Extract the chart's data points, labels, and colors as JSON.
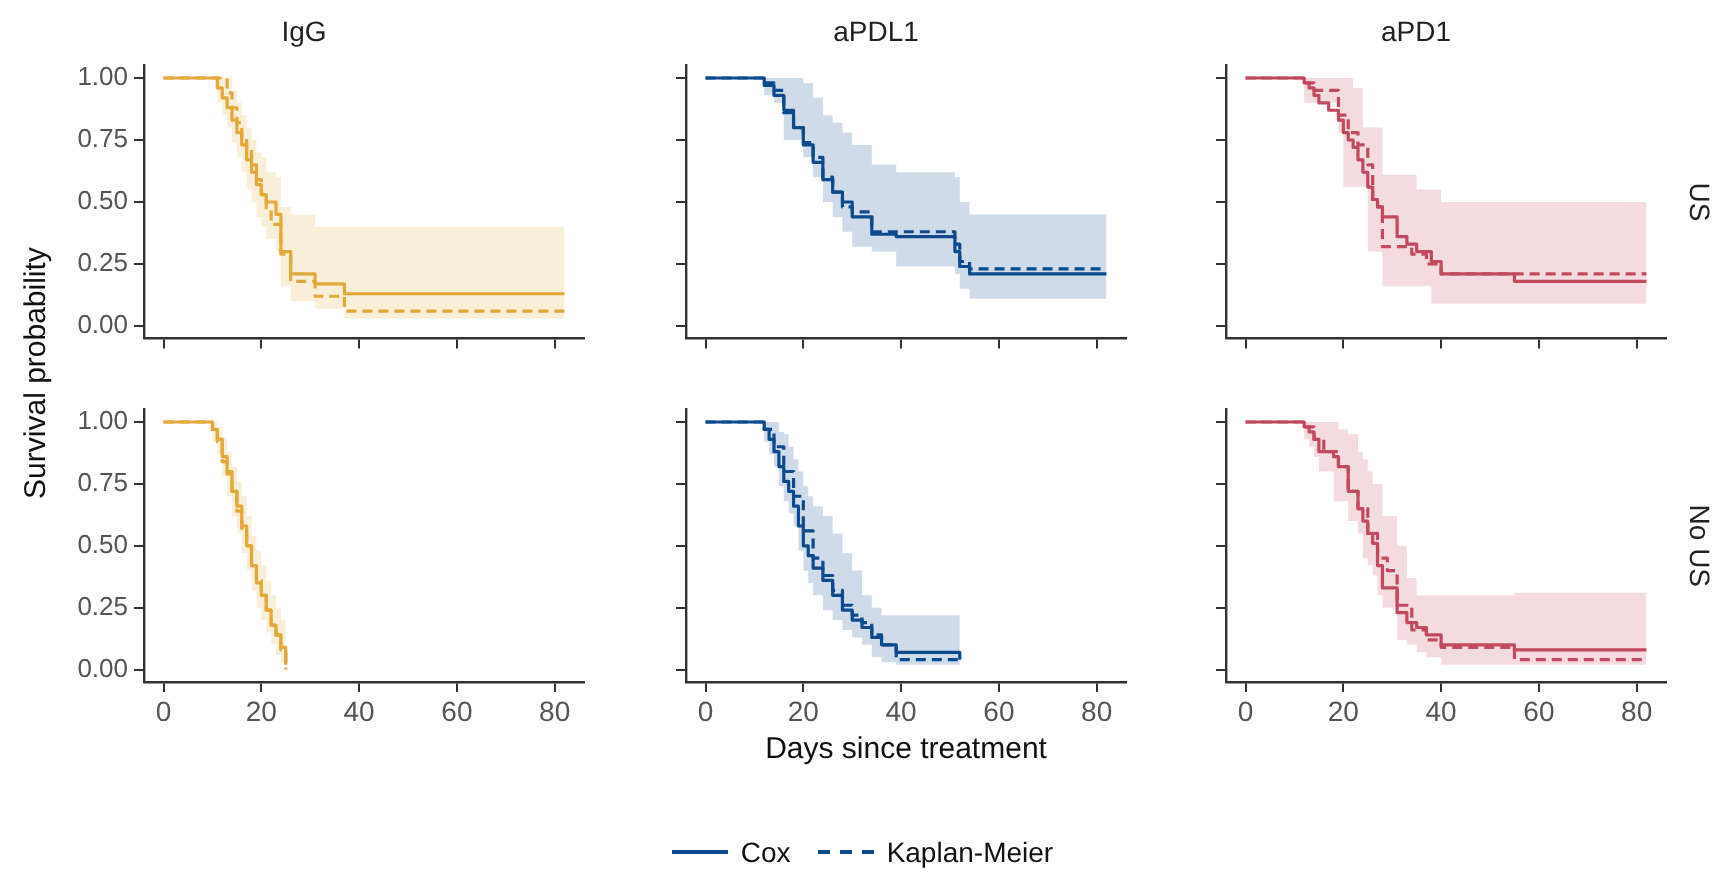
{
  "chart_data": [
    {
      "type": "step",
      "title": "IgG",
      "ylabel": "Survival probability",
      "xlim": [
        -4,
        86
      ],
      "xticks": [
        0,
        20,
        40,
        60,
        80
      ],
      "ylim": [
        -0.05,
        1.05
      ],
      "yticks": [
        {
          "value": 0,
          "label": "0.00"
        },
        {
          "value": 0.25,
          "label": "0.25"
        },
        {
          "value": 0.5,
          "label": "0.50"
        },
        {
          "value": 0.75,
          "label": "0.75"
        },
        {
          "value": 1,
          "label": "1.00"
        }
      ],
      "tick_labels": "y",
      "series": [
        {
          "color": "#e3a83a",
          "line_style": "solid",
          "x": [
            0,
            11,
            12,
            13,
            14,
            15,
            16,
            17,
            18,
            19,
            20,
            21,
            23,
            24,
            26,
            31,
            37,
            82
          ],
          "values": [
            1,
            0.96,
            0.92,
            0.88,
            0.83,
            0.78,
            0.73,
            0.67,
            0.62,
            0.57,
            0.53,
            0.5,
            0.45,
            0.3,
            0.21,
            0.17,
            0.13,
            0.13
          ],
          "lower": [
            1,
            0.9,
            0.85,
            0.8,
            0.74,
            0.68,
            0.62,
            0.55,
            0.5,
            0.44,
            0.4,
            0.35,
            0.3,
            0.16,
            0.1,
            0.07,
            0.03,
            0.03
          ],
          "upper": [
            1,
            1,
            1,
            1,
            0.95,
            0.9,
            0.85,
            0.8,
            0.75,
            0.7,
            0.68,
            0.62,
            0.6,
            0.48,
            0.45,
            0.4,
            0.4,
            0.4
          ]
        },
        {
          "color": "#e3a83a",
          "line_style": "dashed",
          "x": [
            0,
            13,
            14,
            15,
            16,
            17,
            18,
            19,
            20,
            21,
            22,
            24,
            26,
            31,
            37,
            82
          ],
          "values": [
            1,
            0.94,
            0.88,
            0.82,
            0.76,
            0.71,
            0.65,
            0.59,
            0.53,
            0.47,
            0.41,
            0.29,
            0.18,
            0.12,
            0.06,
            0.06
          ]
        }
      ]
    },
    {
      "type": "step",
      "title": "aPDL1",
      "xlim": [
        -4,
        86
      ],
      "xticks": [
        0,
        20,
        40,
        60,
        80
      ],
      "ylim": [
        -0.05,
        1.05
      ],
      "yticks": [
        0,
        0.25,
        0.5,
        0.75,
        1
      ],
      "tick_labels": false,
      "series": [
        {
          "color": "#0d4a8e",
          "line_style": "solid",
          "x": [
            0,
            12,
            14,
            16,
            18,
            20,
            22,
            24,
            26,
            28,
            30,
            34,
            39,
            51,
            52,
            54,
            82
          ],
          "values": [
            1,
            0.97,
            0.93,
            0.87,
            0.8,
            0.73,
            0.66,
            0.59,
            0.54,
            0.5,
            0.44,
            0.37,
            0.36,
            0.3,
            0.24,
            0.21,
            0.21
          ],
          "lower": [
            1,
            0.93,
            0.9,
            0.75,
            0.75,
            0.68,
            0.6,
            0.5,
            0.44,
            0.38,
            0.32,
            0.3,
            0.24,
            0.21,
            0.15,
            0.11,
            0.11
          ],
          "upper": [
            1,
            1,
            1,
            1,
            1,
            0.98,
            0.92,
            0.85,
            0.82,
            0.78,
            0.73,
            0.65,
            0.62,
            0.6,
            0.5,
            0.45,
            0.45
          ]
        },
        {
          "color": "#0d4a8e",
          "line_style": "dashed",
          "x": [
            0,
            12,
            14,
            16,
            18,
            20,
            22,
            24,
            26,
            28,
            30,
            34,
            39,
            51,
            52,
            54,
            82
          ],
          "values": [
            1,
            0.98,
            0.95,
            0.86,
            0.8,
            0.74,
            0.68,
            0.6,
            0.54,
            0.48,
            0.46,
            0.38,
            0.38,
            0.33,
            0.26,
            0.23,
            0.23
          ]
        }
      ]
    },
    {
      "type": "step",
      "title": "aPD1",
      "y2label": "US",
      "xlim": [
        -4,
        86
      ],
      "xticks": [
        0,
        20,
        40,
        60,
        80
      ],
      "ylim": [
        -0.05,
        1.05
      ],
      "yticks": [
        0,
        0.25,
        0.5,
        0.75,
        1
      ],
      "tick_labels": false,
      "series": [
        {
          "color": "#c24a5e",
          "line_style": "solid",
          "x": [
            0,
            12,
            13,
            14,
            15,
            17,
            19,
            20,
            21,
            22,
            23,
            24,
            25,
            26,
            27,
            28,
            31,
            33,
            35,
            38,
            40,
            55,
            82
          ],
          "values": [
            1,
            0.98,
            0.96,
            0.93,
            0.9,
            0.87,
            0.83,
            0.78,
            0.75,
            0.72,
            0.67,
            0.62,
            0.56,
            0.51,
            0.48,
            0.44,
            0.36,
            0.33,
            0.3,
            0.26,
            0.21,
            0.18,
            0.18
          ],
          "lower": [
            1,
            0.9,
            0.9,
            0.9,
            0.9,
            0.9,
            0.78,
            0.56,
            0.56,
            0.56,
            0.56,
            0.56,
            0.3,
            0.3,
            0.3,
            0.16,
            0.16,
            0.16,
            0.16,
            0.09,
            0.09,
            0.09,
            0.09
          ],
          "upper": [
            1,
            1,
            1,
            1,
            1,
            1,
            1,
            1,
            1,
            0.96,
            0.96,
            0.8,
            0.8,
            0.8,
            0.8,
            0.61,
            0.61,
            0.61,
            0.55,
            0.55,
            0.5,
            0.5,
            0.5
          ]
        },
        {
          "color": "#c24a5e",
          "line_style": "dashed",
          "x": [
            0,
            12,
            14,
            17,
            19,
            21,
            23,
            25,
            26,
            27,
            28,
            31,
            34,
            37,
            40,
            82
          ],
          "values": [
            1,
            0.98,
            0.95,
            0.95,
            0.85,
            0.78,
            0.73,
            0.65,
            0.5,
            0.48,
            0.32,
            0.32,
            0.29,
            0.25,
            0.21,
            0.21
          ]
        }
      ]
    },
    {
      "type": "step",
      "xlim": [
        -4,
        86
      ],
      "xticks": [
        0,
        20,
        40,
        60,
        80
      ],
      "ylim": [
        -0.05,
        1.05
      ],
      "yticks": [
        {
          "value": 0,
          "label": "0.00"
        },
        {
          "value": 0.25,
          "label": "0.25"
        },
        {
          "value": 0.5,
          "label": "0.50"
        },
        {
          "value": 0.75,
          "label": "0.75"
        },
        {
          "value": 1,
          "label": "1.00"
        }
      ],
      "series": [
        {
          "color": "#e3a83a",
          "line_style": "solid",
          "x": [
            0,
            10,
            11,
            12,
            13,
            14,
            15,
            16,
            17,
            18,
            19,
            20,
            21,
            22,
            23,
            24,
            25
          ],
          "values": [
            1,
            0.97,
            0.93,
            0.86,
            0.79,
            0.72,
            0.66,
            0.58,
            0.5,
            0.42,
            0.35,
            0.3,
            0.24,
            0.18,
            0.14,
            0.09,
            0.02
          ],
          "lower": [
            1,
            0.92,
            0.87,
            0.78,
            0.7,
            0.62,
            0.55,
            0.47,
            0.4,
            0.32,
            0.25,
            0.2,
            0.15,
            0.1,
            0.06,
            0.03,
            0.01
          ],
          "upper": [
            1,
            1,
            0.98,
            0.94,
            0.88,
            0.82,
            0.76,
            0.7,
            0.62,
            0.54,
            0.48,
            0.42,
            0.36,
            0.3,
            0.25,
            0.2,
            0.1
          ]
        },
        {
          "color": "#e3a83a",
          "line_style": "dashed",
          "x": [
            0,
            10,
            11,
            12,
            13,
            14,
            15,
            16,
            17,
            18,
            19,
            20,
            21,
            22,
            23,
            24,
            25
          ],
          "values": [
            1,
            0.96,
            0.92,
            0.84,
            0.8,
            0.72,
            0.64,
            0.56,
            0.5,
            0.42,
            0.36,
            0.3,
            0.24,
            0.18,
            0.14,
            0.08,
            0
          ]
        }
      ]
    },
    {
      "type": "step",
      "xlabel": "Days since treatment",
      "legend": "bottom",
      "xlim": [
        -4,
        86
      ],
      "xticks": [
        0,
        20,
        40,
        60,
        80
      ],
      "ylim": [
        -0.05,
        1.05
      ],
      "yticks": [
        0,
        0.25,
        0.5,
        0.75,
        1
      ],
      "tick_labels": "x",
      "series": [
        {
          "name": "Cox",
          "color": "#0d4a8e",
          "line_style": "solid",
          "x": [
            0,
            12,
            13,
            14,
            15,
            16,
            17,
            18,
            19,
            20,
            21,
            22,
            24,
            26,
            28,
            30,
            32,
            34,
            36,
            39,
            52
          ],
          "values": [
            1,
            0.97,
            0.93,
            0.88,
            0.82,
            0.76,
            0.72,
            0.66,
            0.58,
            0.5,
            0.46,
            0.41,
            0.36,
            0.3,
            0.24,
            0.2,
            0.17,
            0.13,
            0.1,
            0.07,
            0.04
          ],
          "lower": [
            1,
            0.92,
            0.87,
            0.82,
            0.74,
            0.68,
            0.63,
            0.58,
            0.48,
            0.4,
            0.35,
            0.3,
            0.24,
            0.2,
            0.16,
            0.13,
            0.1,
            0.05,
            0.03,
            0.02,
            0.02
          ],
          "upper": [
            1,
            1,
            1,
            1,
            0.96,
            0.95,
            0.9,
            0.85,
            0.8,
            0.74,
            0.7,
            0.66,
            0.62,
            0.55,
            0.47,
            0.4,
            0.3,
            0.25,
            0.22,
            0.22,
            0.22
          ]
        },
        {
          "name": "Kaplan-Meier",
          "color": "#0d4a8e",
          "line_style": "dashed",
          "x": [
            0,
            12,
            14,
            16,
            18,
            20,
            22,
            24,
            26,
            28,
            30,
            32,
            34,
            36,
            39,
            52
          ],
          "values": [
            1,
            0.97,
            0.9,
            0.8,
            0.7,
            0.56,
            0.45,
            0.38,
            0.32,
            0.26,
            0.22,
            0.19,
            0.14,
            0.1,
            0.04,
            0.04
          ]
        }
      ]
    },
    {
      "type": "step",
      "y2label": "No US",
      "xlim": [
        -4,
        86
      ],
      "xticks": [
        0,
        20,
        40,
        60,
        80
      ],
      "ylim": [
        -0.05,
        1.05
      ],
      "yticks": [
        0,
        0.25,
        0.5,
        0.75,
        1
      ],
      "tick_labels": "x",
      "series": [
        {
          "color": "#c24a5e",
          "line_style": "solid",
          "x": [
            0,
            12,
            13,
            14,
            15,
            18,
            19,
            21,
            23,
            24,
            25,
            26,
            27,
            28,
            31,
            33,
            35,
            37,
            40,
            55,
            82
          ],
          "values": [
            1,
            0.98,
            0.96,
            0.93,
            0.88,
            0.86,
            0.82,
            0.72,
            0.65,
            0.6,
            0.55,
            0.51,
            0.42,
            0.33,
            0.23,
            0.19,
            0.17,
            0.14,
            0.1,
            0.08,
            0.08
          ],
          "lower": [
            1,
            0.93,
            0.9,
            0.86,
            0.8,
            0.68,
            0.68,
            0.6,
            0.55,
            0.45,
            0.42,
            0.38,
            0.3,
            0.25,
            0.12,
            0.1,
            0.07,
            0.05,
            0.02,
            0.02,
            0.02
          ],
          "upper": [
            1,
            1,
            1,
            1,
            1,
            1,
            0.97,
            0.95,
            0.88,
            0.85,
            0.8,
            0.75,
            0.75,
            0.62,
            0.5,
            0.37,
            0.3,
            0.3,
            0.3,
            0.31,
            0.31
          ]
        },
        {
          "color": "#c24a5e",
          "line_style": "dashed",
          "x": [
            0,
            12,
            14,
            16,
            19,
            21,
            23,
            25,
            27,
            29,
            31,
            34,
            37,
            40,
            55,
            82
          ],
          "values": [
            1,
            0.98,
            0.93,
            0.88,
            0.82,
            0.72,
            0.65,
            0.55,
            0.45,
            0.4,
            0.26,
            0.16,
            0.12,
            0.09,
            0.04,
            0.04
          ]
        }
      ]
    }
  ]
}
